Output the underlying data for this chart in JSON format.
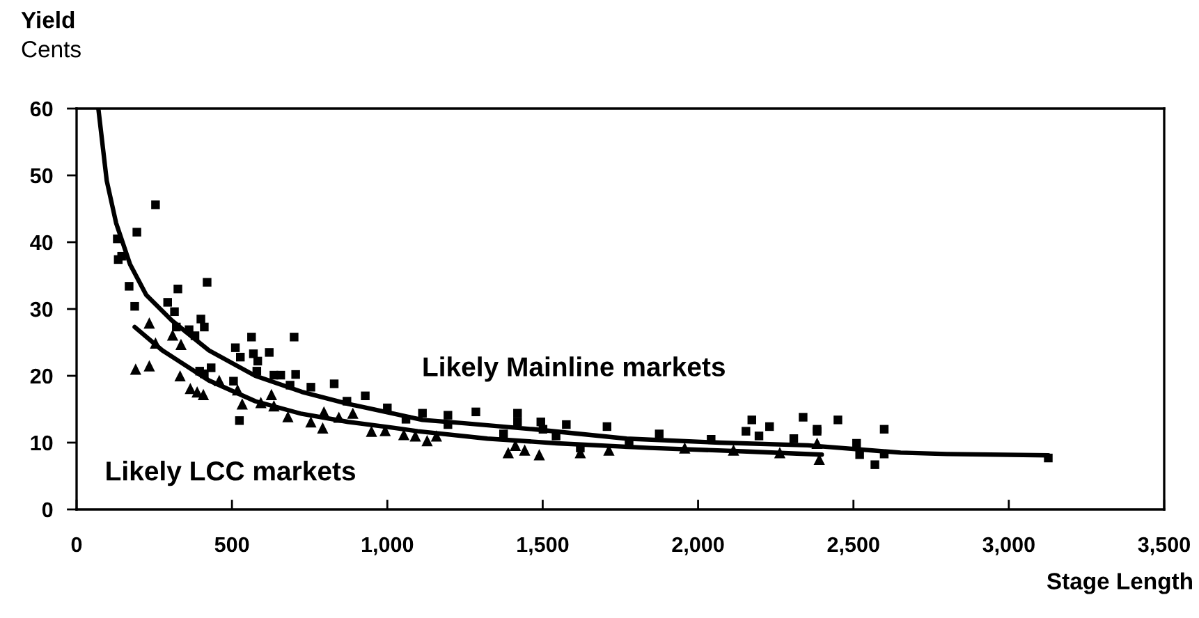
{
  "chart_data": {
    "type": "scatter",
    "ylabel": "Yield\nCents",
    "xlabel": "Stage Length",
    "xlim": [
      0,
      3500
    ],
    "ylim": [
      0,
      60
    ],
    "xticks": [
      0,
      500,
      {
        "value": 1000,
        "label": "1,000"
      },
      {
        "value": 1500,
        "label": "1,500"
      },
      {
        "value": 2000,
        "label": "2,000"
      },
      {
        "value": 2500,
        "label": "2,500"
      },
      {
        "value": 3000,
        "label": "3,000"
      },
      {
        "value": 3500,
        "label": "3,500"
      }
    ],
    "yticks": [
      0,
      10,
      20,
      30,
      40,
      50,
      60
    ],
    "series": [
      {
        "name": "Likely Mainline markets",
        "marker": "square",
        "color": "#000000",
        "x": [
          254,
          194,
          131,
          134,
          145,
          169,
          187,
          326,
          420,
          293,
          315,
          400,
          411,
          362,
          381,
          321,
          563,
          700,
          511,
          527,
          569,
          620,
          583,
          580,
          635,
          657,
          705,
          396,
          411,
          433,
          505,
          754,
          829,
          929,
          524,
          687,
          870,
          1000,
          1060,
          1113,
          1195,
          1195,
          1285,
          1419,
          1419,
          1374,
          1494,
          1501,
          1576,
          1543,
          1707,
          1875,
          2042,
          2173,
          2154,
          2196,
          2230,
          2338,
          2308,
          2383,
          1621,
          1778,
          2450,
          2599,
          2510,
          2520,
          2569,
          2599,
          3127,
          2383
        ],
        "values": [
          45.6,
          41.5,
          40.5,
          37.4,
          37.9,
          33.4,
          30.4,
          33.0,
          34.0,
          31.0,
          29.6,
          28.5,
          27.3,
          26.9,
          26.0,
          27.3,
          25.8,
          25.8,
          24.2,
          22.8,
          23.3,
          23.5,
          22.2,
          20.7,
          20.1,
          20.1,
          20.2,
          20.7,
          20.3,
          21.2,
          19.2,
          18.3,
          18.8,
          17.0,
          13.3,
          18.6,
          16.2,
          15.2,
          13.5,
          14.4,
          14.1,
          12.7,
          14.6,
          14.4,
          13.1,
          11.3,
          13.1,
          12.0,
          12.7,
          11.0,
          12.4,
          11.3,
          10.5,
          13.4,
          11.7,
          11.0,
          12.4,
          13.8,
          10.6,
          11.7,
          9.2,
          9.7,
          13.4,
          12.0,
          9.9,
          8.2,
          6.7,
          8.3,
          7.7,
          12.0
        ]
      },
      {
        "name": "Likely LCC markets",
        "marker": "triangle",
        "color": "#000000",
        "x": [
          190,
          234,
          234,
          254,
          309,
          336,
          333,
          366,
          408,
          388,
          459,
          518,
          533,
          593,
          627,
          635,
          680,
          754,
          792,
          796,
          844,
          889,
          949,
          993,
          1053,
          1090,
          1128,
          1158,
          1389,
          1412,
          1442,
          1489,
          1621,
          1713,
          1957,
          2114,
          2263,
          2390,
          2383
        ],
        "values": [
          21.0,
          21.5,
          27.9,
          24.9,
          26.1,
          24.7,
          20.0,
          18.1,
          17.2,
          17.6,
          19.3,
          17.9,
          15.8,
          16.0,
          17.2,
          15.5,
          13.9,
          13.1,
          12.2,
          14.6,
          13.8,
          14.4,
          11.7,
          11.8,
          11.2,
          11.0,
          10.3,
          11.0,
          8.5,
          9.6,
          8.9,
          8.2,
          8.5,
          8.9,
          9.2,
          8.9,
          8.5,
          7.5,
          9.9
        ]
      },
      {
        "type": "line",
        "marker": "none",
        "line_style": "solid",
        "color": "#000000",
        "x": [
          70,
          97,
          127,
          172,
          224,
          306,
          426,
          575,
          725,
          874,
          1023,
          1113,
          1247,
          1471,
          1770,
          2069,
          2353,
          2652,
          2801,
          3127
        ],
        "values": [
          60,
          49.2,
          42.9,
          36.7,
          32.1,
          28.3,
          23.8,
          20.0,
          17.6,
          15.8,
          14.3,
          13.4,
          12.9,
          12.0,
          10.6,
          10.0,
          9.6,
          8.5,
          8.3,
          8.1
        ]
      },
      {
        "type": "line",
        "marker": "none",
        "line_style": "solid",
        "color": "#000000",
        "x": [
          187,
          276,
          426,
          575,
          725,
          874,
          1023,
          1098,
          1322,
          1546,
          1845,
          2144,
          2398
        ],
        "values": [
          27.3,
          23.8,
          19.3,
          16.2,
          14.3,
          13.1,
          12.2,
          11.7,
          10.6,
          9.9,
          9.2,
          8.7,
          8.2
        ]
      }
    ]
  }
}
